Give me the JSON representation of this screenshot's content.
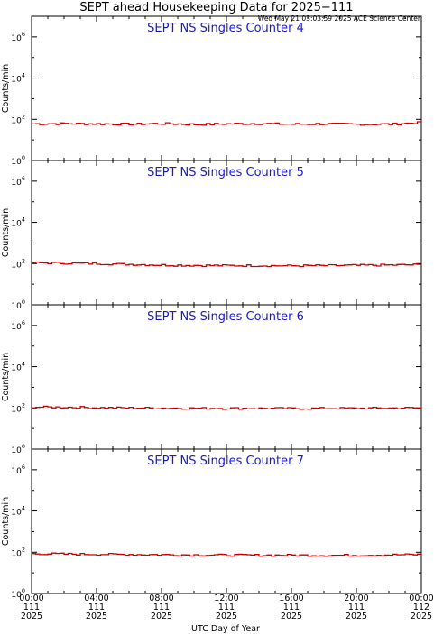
{
  "figure": {
    "title": "SEPT ahead Housekeeping Data for 2025−111",
    "timestamp": "Wed May 21 03:03:59 2025 ACE Science Center",
    "xlabel": "UTC Day of Year",
    "ylabel": "Counts/min"
  },
  "chart_data": [
    {
      "type": "line",
      "title": "SEPT NS Singles Counter 4",
      "ylabel": "Counts/min",
      "yscale": "log",
      "ylim": [
        1,
        10000000
      ],
      "xlim": [
        "111 00:00",
        "112 00:00"
      ],
      "color": "#cc0000",
      "series": [
        {
          "x_hours": [
            0,
            2,
            4,
            6,
            8,
            10,
            12,
            14,
            16,
            18,
            20,
            22,
            24
          ],
          "values": [
            60,
            62,
            60,
            58,
            62,
            56,
            60,
            62,
            58,
            60,
            57,
            58,
            70
          ]
        }
      ]
    },
    {
      "type": "line",
      "title": "SEPT NS Singles Counter 5",
      "ylabel": "Counts/min",
      "yscale": "log",
      "ylim": [
        1,
        10000000
      ],
      "xlim": [
        "111 00:00",
        "112 00:00"
      ],
      "color": "#cc0000",
      "series": [
        {
          "x_hours": [
            0,
            2,
            4,
            6,
            8,
            10,
            12,
            14,
            16,
            18,
            20,
            22,
            24
          ],
          "values": [
            110,
            105,
            100,
            92,
            85,
            82,
            80,
            80,
            78,
            80,
            82,
            85,
            88
          ]
        }
      ]
    },
    {
      "type": "line",
      "title": "SEPT NS Singles Counter 6",
      "ylabel": "Counts/min",
      "yscale": "log",
      "ylim": [
        1,
        10000000
      ],
      "xlim": [
        "111 00:00",
        "112 00:00"
      ],
      "color": "#cc0000",
      "series": [
        {
          "x_hours": [
            0,
            2,
            4,
            6,
            8,
            10,
            12,
            14,
            16,
            18,
            20,
            22,
            24
          ],
          "values": [
            110,
            108,
            102,
            100,
            98,
            96,
            96,
            95,
            94,
            95,
            96,
            98,
            100
          ]
        }
      ]
    },
    {
      "type": "line",
      "title": "SEPT NS Singles Counter 7",
      "ylabel": "Counts/min",
      "yscale": "log",
      "ylim": [
        1,
        10000000
      ],
      "xlim": [
        "111 00:00",
        "112 00:00"
      ],
      "color": "#cc0000",
      "series": [
        {
          "x_hours": [
            0,
            2,
            4,
            6,
            8,
            10,
            12,
            14,
            16,
            18,
            20,
            22,
            24
          ],
          "values": [
            85,
            82,
            80,
            78,
            76,
            74,
            73,
            72,
            72,
            71,
            72,
            75,
            78
          ]
        }
      ]
    }
  ],
  "x_ticks": [
    {
      "time": "00:00",
      "day": "111",
      "year": "2025"
    },
    {
      "time": "04:00",
      "day": "111",
      "year": "2025"
    },
    {
      "time": "08:00",
      "day": "111",
      "year": "2025"
    },
    {
      "time": "12:00",
      "day": "111",
      "year": "2025"
    },
    {
      "time": "16:00",
      "day": "111",
      "year": "2025"
    },
    {
      "time": "20:00",
      "day": "111",
      "year": "2025"
    },
    {
      "time": "00:00",
      "day": "112",
      "year": "2025"
    }
  ],
  "y_ticks": [
    {
      "base": "10",
      "exp": "0"
    },
    {
      "base": "10",
      "exp": "2"
    },
    {
      "base": "10",
      "exp": "4"
    },
    {
      "base": "10",
      "exp": "6"
    }
  ]
}
